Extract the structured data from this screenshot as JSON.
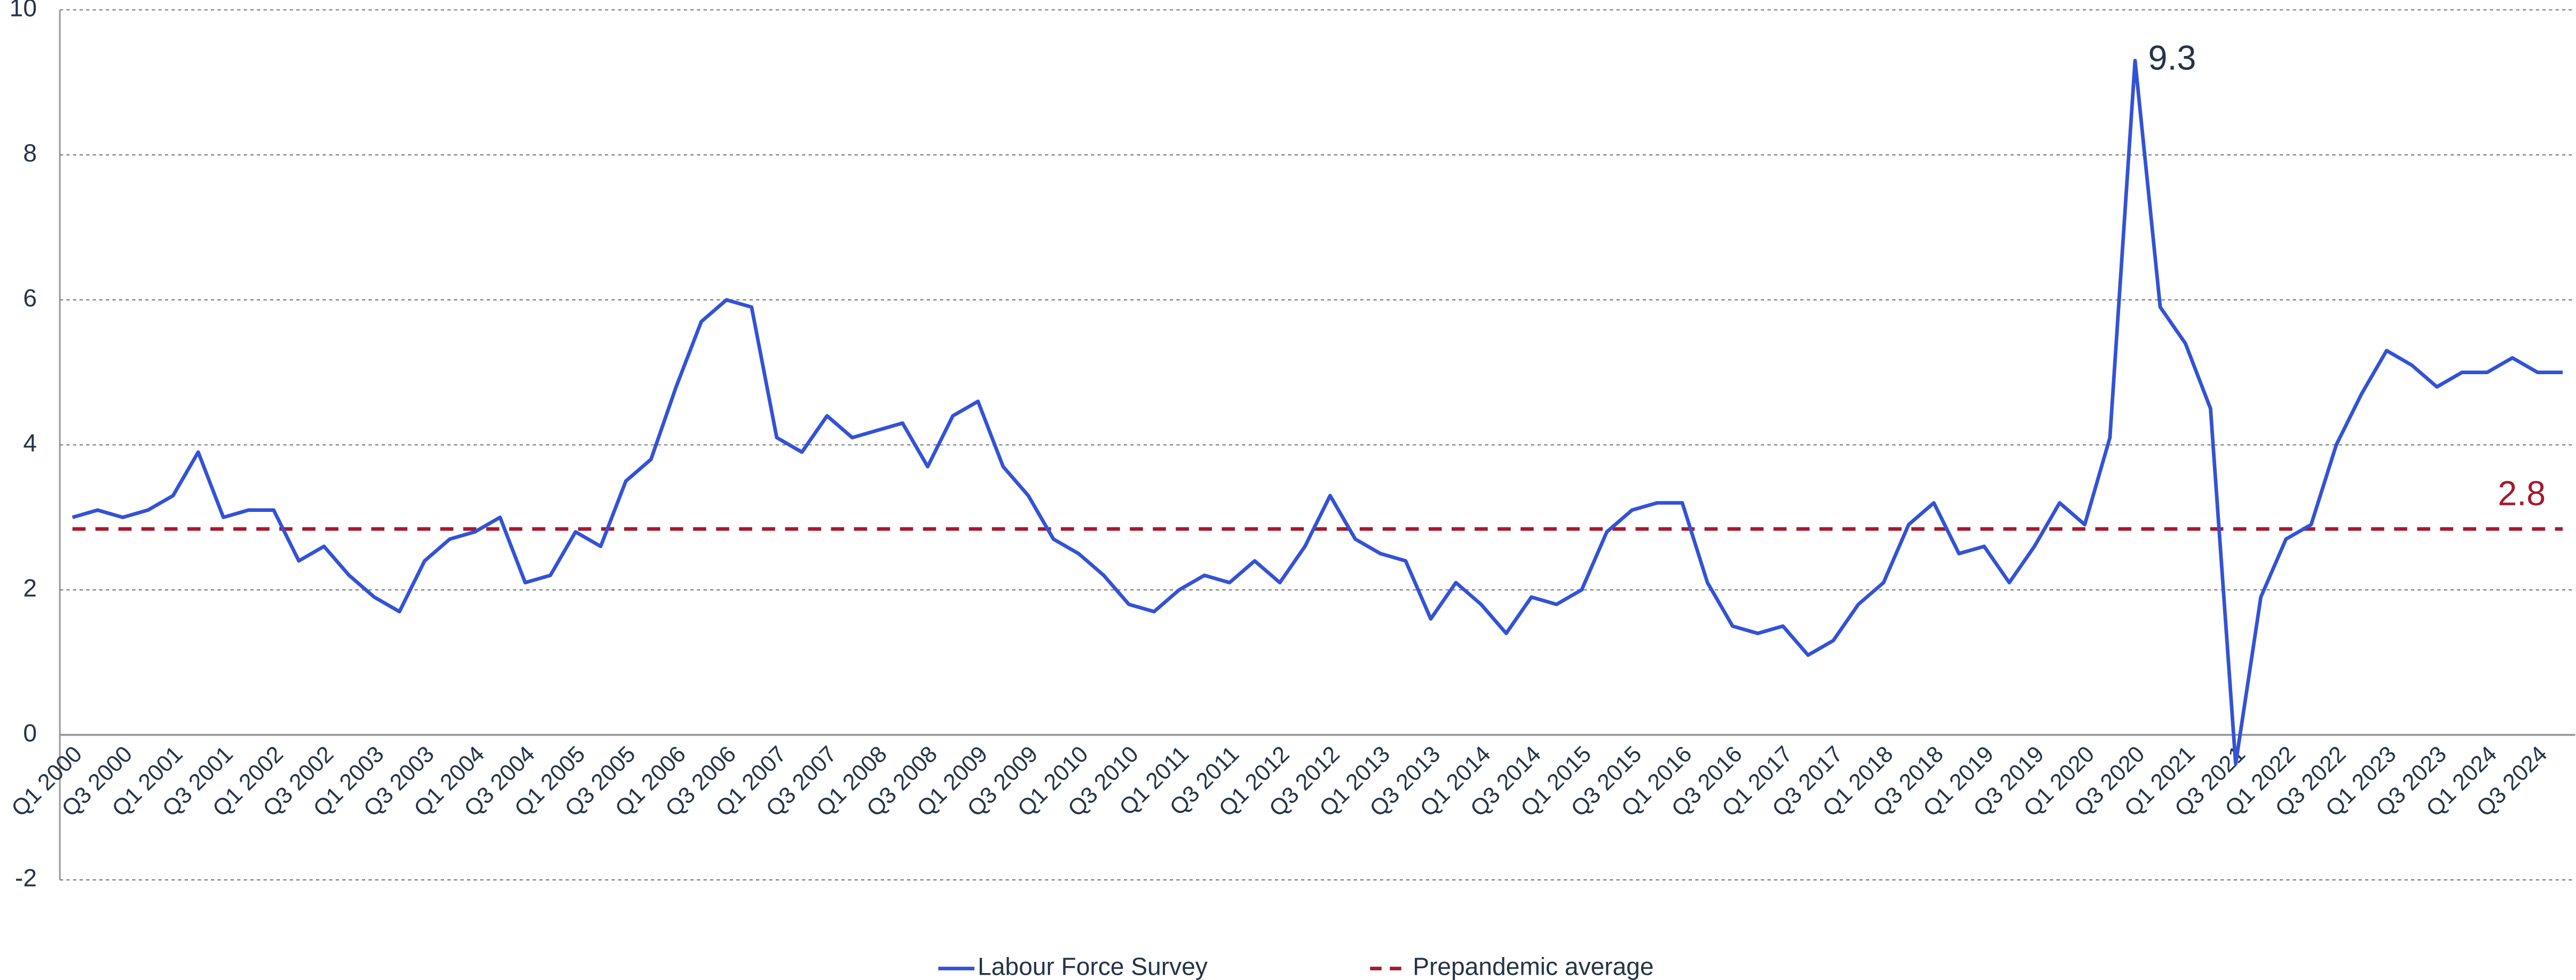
{
  "chart_data": {
    "type": "line",
    "categories": [
      "Q1 2000",
      null,
      "Q3 2000",
      null,
      "Q1 2001",
      null,
      "Q3 2001",
      null,
      "Q1 2002",
      null,
      "Q3 2002",
      null,
      "Q1 2003",
      null,
      "Q3 2003",
      null,
      "Q1 2004",
      null,
      "Q3 2004",
      null,
      "Q1 2005",
      null,
      "Q3 2005",
      null,
      "Q1 2006",
      null,
      "Q3 2006",
      null,
      "Q1 2007",
      null,
      "Q3 2007",
      null,
      "Q1 2008",
      null,
      "Q3 2008",
      null,
      "Q1 2009",
      null,
      "Q3 2009",
      null,
      "Q1 2010",
      null,
      "Q3 2010",
      null,
      "Q1 2011",
      null,
      "Q3 2011",
      null,
      "Q1 2012",
      null,
      "Q3 2012",
      null,
      "Q1 2013",
      null,
      "Q3 2013",
      null,
      "Q1 2014",
      null,
      "Q3 2014",
      null,
      "Q1 2015",
      null,
      "Q3 2015",
      null,
      "Q1 2016",
      null,
      "Q3 2016",
      null,
      "Q1 2017",
      null,
      "Q3 2017",
      null,
      "Q1 2018",
      null,
      "Q3 2018",
      null,
      "Q1 2019",
      null,
      "Q3 2019",
      null,
      "Q1 2020",
      null,
      "Q3 2020",
      null,
      "Q1 2021",
      null,
      "Q3 2021",
      null,
      "Q1 2022",
      null,
      "Q3 2022",
      null,
      "Q1 2023",
      null,
      "Q3 2023",
      null,
      "Q1 2024",
      null,
      "Q3 2024",
      null
    ],
    "series": [
      {
        "name": "Labour Force Survey",
        "color": "#3352d6",
        "values": [
          3.0,
          3.1,
          3.0,
          3.1,
          3.3,
          3.9,
          3.0,
          3.1,
          3.1,
          2.4,
          2.6,
          2.2,
          1.9,
          1.7,
          2.4,
          2.7,
          2.8,
          3.0,
          2.1,
          2.2,
          2.8,
          2.6,
          3.5,
          3.8,
          4.8,
          5.7,
          6.0,
          5.9,
          4.1,
          3.9,
          4.4,
          4.1,
          4.2,
          4.3,
          3.7,
          4.4,
          4.6,
          3.7,
          3.3,
          2.7,
          2.5,
          2.2,
          1.8,
          1.7,
          2.0,
          2.2,
          2.1,
          2.4,
          2.1,
          2.6,
          3.3,
          2.7,
          2.5,
          2.4,
          1.6,
          2.1,
          1.8,
          1.4,
          1.9,
          1.8,
          2.0,
          2.8,
          3.1,
          3.2,
          3.2,
          2.1,
          1.5,
          1.4,
          1.5,
          1.1,
          1.3,
          1.8,
          2.1,
          2.9,
          3.2,
          2.5,
          2.6,
          2.1,
          2.6,
          3.2,
          2.9,
          4.1,
          9.3,
          5.9,
          5.4,
          4.5,
          -0.4,
          1.9,
          2.7,
          2.9,
          4.0,
          4.7,
          5.3,
          5.1,
          4.8,
          5.0,
          5.0,
          5.2,
          5.0,
          5.0
        ],
        "value_labels": [
          null,
          null,
          null,
          null,
          null,
          null,
          null,
          null,
          null,
          null,
          null,
          null,
          null,
          null,
          null,
          null,
          null,
          null,
          null,
          null,
          null,
          null,
          null,
          null,
          null,
          null,
          null,
          null,
          null,
          null,
          null,
          null,
          null,
          null,
          null,
          null,
          null,
          null,
          null,
          null,
          null,
          null,
          null,
          null,
          null,
          null,
          null,
          null,
          null,
          null,
          null,
          null,
          null,
          null,
          null,
          null,
          null,
          null,
          null,
          null,
          null,
          null,
          null,
          null,
          null,
          null,
          null,
          null,
          null,
          null,
          null,
          null,
          null,
          null,
          null,
          null,
          null,
          null,
          null,
          null,
          null,
          null,
          "9.3",
          null,
          null,
          null,
          null,
          null,
          null,
          null,
          null,
          null,
          null,
          null,
          null,
          null,
          null,
          null,
          null,
          null
        ]
      }
    ],
    "reference_line": {
      "name": "Prepandemic average",
      "color": "#a6192e",
      "value": 2.84,
      "label": "2.8"
    },
    "ylim": [
      -2,
      10
    ],
    "yticks": [
      -2,
      0,
      2,
      4,
      6,
      8,
      10
    ],
    "grid": true
  }
}
